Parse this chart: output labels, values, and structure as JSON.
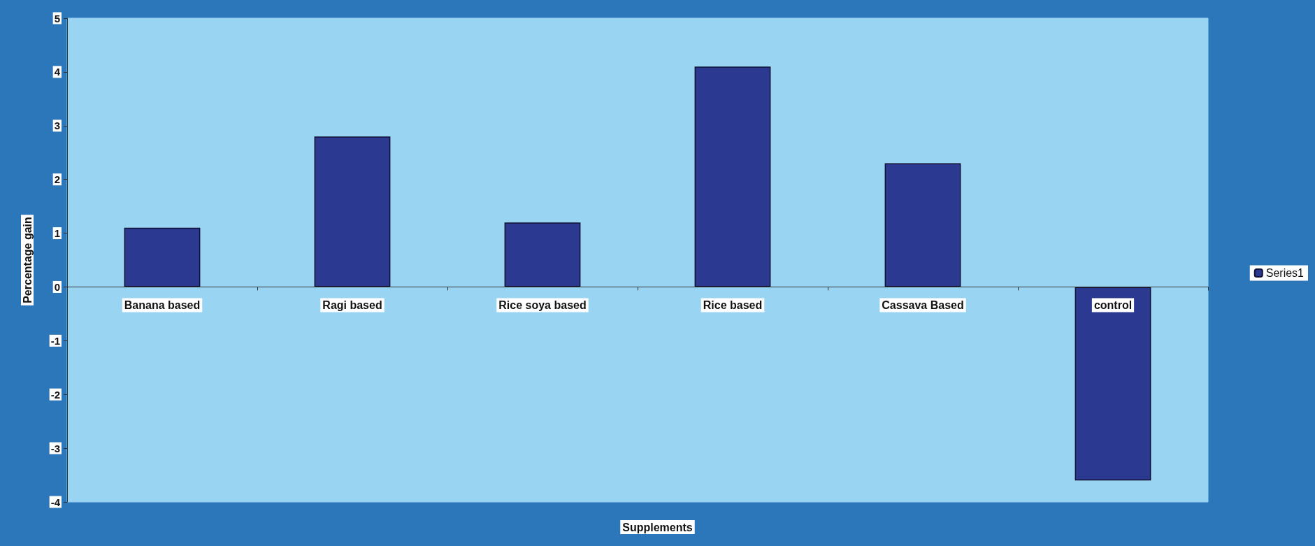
{
  "chart_data": {
    "type": "bar",
    "xlabel": "Supplements",
    "ylabel": "Percentage gain",
    "categories": [
      "Banana based",
      "Ragi based",
      "Rice soya based",
      "Rice based",
      "Cassava Based",
      "control"
    ],
    "series": [
      {
        "name": "Series1",
        "color": "#2b3990",
        "values": [
          1.1,
          2.8,
          1.2,
          4.1,
          2.3,
          -3.6
        ]
      }
    ],
    "ylim": [
      -4,
      5
    ],
    "yticks": [
      -4,
      -3,
      -2,
      -1,
      0,
      1,
      2,
      3,
      4,
      5
    ],
    "grid": false,
    "legend": "right"
  }
}
